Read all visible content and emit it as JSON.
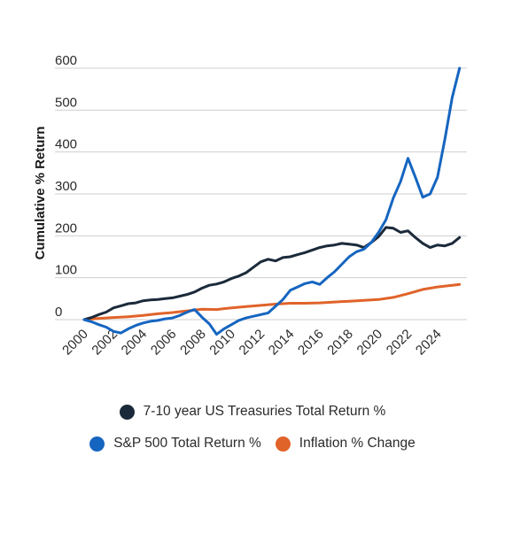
{
  "chart_data": {
    "type": "line",
    "ylabel": "Cumulative % Return",
    "xlabel": "",
    "ylim": [
      -30,
      630
    ],
    "xlim": [
      2000,
      2026
    ],
    "yticks": [
      0,
      100,
      200,
      300,
      400,
      500,
      600
    ],
    "xticks": [
      "2000",
      "2002",
      "2004",
      "2006",
      "2008",
      "2010",
      "2012",
      "2014",
      "2016",
      "2018",
      "2020",
      "2022",
      "2024"
    ],
    "grid": true,
    "legend_position": "bottom",
    "colors": {
      "treasuries": "#1b2a3a",
      "sp500": "#1565c0",
      "inflation": "#e0632a"
    },
    "series": [
      {
        "name": "7-10 year US Treasuries Total Return %",
        "key": "treasuries",
        "x": [
          2000,
          2000.5,
          2001,
          2001.5,
          2002,
          2002.5,
          2003,
          2003.5,
          2004,
          2004.5,
          2005,
          2005.5,
          2006,
          2006.5,
          2007,
          2007.5,
          2008,
          2008.5,
          2009,
          2009.5,
          2010,
          2010.5,
          2011,
          2011.5,
          2012,
          2012.5,
          2013,
          2013.5,
          2014,
          2014.5,
          2015,
          2015.5,
          2016,
          2016.5,
          2017,
          2017.5,
          2018,
          2018.5,
          2019,
          2019.5,
          2020,
          2020.5,
          2021,
          2021.5,
          2022,
          2022.5,
          2023,
          2023.5,
          2024,
          2024.5,
          2025,
          2025.5
        ],
        "y": [
          0,
          5,
          12,
          18,
          28,
          33,
          38,
          40,
          45,
          47,
          48,
          50,
          52,
          56,
          60,
          66,
          75,
          82,
          85,
          90,
          98,
          104,
          112,
          125,
          138,
          144,
          140,
          148,
          150,
          155,
          160,
          166,
          172,
          176,
          178,
          182,
          180,
          178,
          172,
          184,
          198,
          220,
          218,
          208,
          212,
          196,
          182,
          172,
          178,
          176,
          182,
          196
        ]
      },
      {
        "name": "S&P 500 Total Return %",
        "key": "sp500",
        "x": [
          2000,
          2000.5,
          2001,
          2001.5,
          2002,
          2002.5,
          2003,
          2003.5,
          2004,
          2004.5,
          2005,
          2005.5,
          2006,
          2006.5,
          2007,
          2007.5,
          2008,
          2008.5,
          2009,
          2009.5,
          2010,
          2010.5,
          2011,
          2011.5,
          2012,
          2012.5,
          2013,
          2013.5,
          2014,
          2014.5,
          2015,
          2015.5,
          2016,
          2016.5,
          2017,
          2017.5,
          2018,
          2018.5,
          2019,
          2019.5,
          2020,
          2020.5,
          2021,
          2021.5,
          2022,
          2022.5,
          2023,
          2023.5,
          2024,
          2024.5,
          2025,
          2025.5
        ],
        "y": [
          0,
          -5,
          -12,
          -18,
          -28,
          -32,
          -22,
          -14,
          -8,
          -4,
          -2,
          2,
          4,
          10,
          18,
          24,
          6,
          -10,
          -35,
          -22,
          -12,
          -2,
          4,
          8,
          12,
          16,
          32,
          48,
          70,
          78,
          86,
          90,
          84,
          100,
          114,
          132,
          150,
          162,
          168,
          184,
          208,
          238,
          290,
          330,
          385,
          340,
          292,
          300,
          340,
          430,
          530,
          600
        ]
      },
      {
        "name": "Inflation % Change",
        "key": "inflation",
        "x": [
          2000,
          2001,
          2002,
          2003,
          2004,
          2005,
          2006,
          2007,
          2008,
          2009,
          2010,
          2011,
          2012,
          2013,
          2014,
          2015,
          2016,
          2017,
          2018,
          2019,
          2020,
          2021,
          2022,
          2023,
          2024,
          2025,
          2025.5
        ],
        "y": [
          0,
          3,
          5,
          7,
          10,
          14,
          17,
          21,
          25,
          24,
          28,
          31,
          34,
          37,
          39,
          39,
          40,
          42,
          44,
          46,
          48,
          53,
          62,
          72,
          78,
          82,
          84
        ]
      }
    ]
  }
}
